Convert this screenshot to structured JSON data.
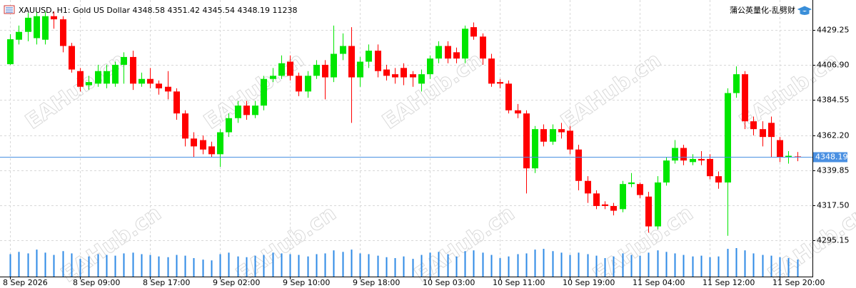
{
  "header": {
    "symbol": "XAUUSD, H1:",
    "description": "Gold US Dollar",
    "brand": "蒲公英量化-乱劈财"
  },
  "watermark": "EAHub.cn",
  "chart_data": {
    "type": "candlestick",
    "categories": [
      "8 Sep 2026",
      null,
      null,
      null,
      null,
      null,
      null,
      null,
      "8 Sep 09:00",
      null,
      null,
      null,
      null,
      null,
      null,
      null,
      "8 Sep 17:00",
      null,
      null,
      null,
      null,
      null,
      null,
      null,
      "9 Sep 02:00",
      null,
      null,
      null,
      null,
      null,
      null,
      null,
      "9 Sep 10:00",
      null,
      null,
      null,
      null,
      null,
      null,
      null,
      "9 Sep 18:00",
      null,
      null,
      null,
      null,
      null,
      null,
      null,
      "10 Sep 03:00",
      null,
      null,
      null,
      null,
      null,
      null,
      null,
      "10 Sep 11:00",
      null,
      null,
      null,
      null,
      null,
      null,
      null,
      "10 Sep 19:00",
      null,
      null,
      null,
      null,
      null,
      null,
      null,
      "11 Sep 04:00",
      null,
      null,
      null,
      null,
      null,
      null,
      null,
      "11 Sep 12:00",
      null,
      null,
      null,
      null,
      null,
      null,
      null,
      "11 Sep 20:00",
      null,
      null
    ],
    "open": [
      4407.4,
      4423,
      4428,
      4424,
      4423,
      4438,
      4436,
      4419,
      4403,
      4394,
      4395,
      4395,
      4395,
      4407,
      4412,
      4395,
      4398,
      4395,
      4393,
      4390,
      4376,
      4360,
      4359,
      4355,
      4350,
      4364,
      4373,
      4381,
      4375,
      4381,
      4398,
      4400,
      4409,
      4400,
      4390,
      4400,
      4407,
      4399,
      4414,
      4419,
      4399,
      4409,
      4416,
      4404,
      4401,
      4405,
      4401,
      4395,
      4401,
      4411,
      4419,
      4415,
      4411,
      4431,
      4425,
      4411,
      4396,
      4395,
      4378,
      4376,
      4341,
      4366,
      4358,
      4366,
      4365,
      4353,
      4333,
      4325,
      4318,
      4317,
      4315,
      4331,
      4331,
      4323,
      4304,
      4332,
      4346,
      4354,
      4345,
      4347,
      4347,
      4336,
      4332,
      4389,
      4401,
      4371,
      4366,
      4370,
      4359,
      4348,
      4348.58
    ],
    "high": [
      4426.5,
      4432,
      4440,
      4441,
      4441,
      4441,
      4438,
      4421,
      4405,
      4400,
      4407,
      4407,
      4409,
      4415,
      4416,
      4402,
      4405,
      4397,
      4403,
      4392,
      4378,
      4364,
      4362,
      4358,
      4366,
      4376,
      4384,
      4384,
      4384,
      4400,
      4405,
      4413,
      4413,
      4402,
      4403,
      4410,
      4410,
      4432,
      4427,
      4431,
      4412,
      4420,
      4420,
      4407,
      4405,
      4408,
      4403,
      4404,
      4413,
      4422,
      4422,
      4418,
      4432,
      4434,
      4427,
      4414,
      4398,
      4397,
      4382,
      4378,
      4368,
      4369,
      4369,
      4370,
      4368,
      4356,
      4336,
      4327,
      4320,
      4319,
      4333,
      4338,
      4332,
      4326,
      4336,
      4348,
      4359,
      4356,
      4350,
      4352,
      4350,
      4339,
      4392,
      4406,
      4403,
      4374,
      4371,
      4374,
      4361,
      4352,
      4351.42
    ],
    "low": [
      4406.9,
      4420,
      4422,
      4420,
      4420,
      4430,
      4415,
      4402,
      4390,
      4391,
      4393,
      4392,
      4393,
      4395,
      4391,
      4393,
      4392,
      4388,
      4385,
      4372,
      4355,
      4348,
      4350,
      4348,
      4342,
      4361,
      4370,
      4372,
      4373,
      4378,
      4396,
      4398,
      4397,
      4387,
      4386,
      4398,
      4385,
      4396,
      4410,
      4370,
      4393,
      4405,
      4399,
      4397,
      4395,
      4394,
      4393,
      4390,
      4398,
      4408,
      4408,
      4408,
      4408,
      4423,
      4407,
      4393,
      4392,
      4376,
      4373,
      4325,
      4338,
      4355,
      4356,
      4360,
      4350,
      4327,
      4319,
      4315,
      4315,
      4311,
      4313,
      4329,
      4322,
      4300,
      4302,
      4330,
      4344,
      4343,
      4343,
      4343,
      4334,
      4328,
      4298,
      4386,
      4366,
      4362,
      4355,
      4348,
      4345,
      4344,
      4345.54
    ],
    "close": [
      4423.3,
      4428,
      4437,
      4438,
      4438,
      4436,
      4419,
      4404,
      4393,
      4396,
      4403,
      4403,
      4407,
      4412,
      4395,
      4398,
      4395,
      4392,
      4390,
      4376,
      4360,
      4355,
      4353,
      4350,
      4364,
      4373,
      4381,
      4375,
      4381,
      4398,
      4400,
      4408,
      4400,
      4390,
      4400,
      4407,
      4399,
      4414,
      4419,
      4399,
      4409,
      4416,
      4403,
      4400,
      4399,
      4399,
      4399,
      4401,
      4411,
      4419,
      4411,
      4411,
      4430,
      4425,
      4411,
      4395,
      4395,
      4378,
      4376,
      4341,
      4366,
      4358,
      4366,
      4364,
      4353,
      4333,
      4325,
      4317,
      4317,
      4314,
      4331,
      4332,
      4324,
      4304,
      4332,
      4346,
      4354,
      4346,
      4347,
      4346,
      4336,
      4332,
      4389,
      4401,
      4371,
      4366,
      4361,
      4361,
      4348,
      4349,
      4348.19
    ],
    "volume": [
      14800,
      16300,
      15300,
      17800,
      15800,
      14300,
      16800,
      15300,
      11700,
      13300,
      14800,
      14300,
      13800,
      15300,
      15800,
      14800,
      14300,
      13300,
      12800,
      14300,
      13800,
      12200,
      11200,
      10700,
      14800,
      15800,
      13300,
      12800,
      13800,
      14300,
      15800,
      15300,
      14800,
      14300,
      13300,
      14800,
      15300,
      17300,
      16300,
      17800,
      15300,
      14800,
      13800,
      12800,
      12200,
      13300,
      11700,
      14300,
      15800,
      16300,
      14800,
      13300,
      16800,
      17300,
      15800,
      14300,
      12200,
      13300,
      14800,
      15300,
      17800,
      18300,
      16800,
      15800,
      14300,
      15800,
      14800,
      13800,
      12200,
      13300,
      15300,
      14300,
      13800,
      15800,
      17300,
      16300,
      15300,
      14300,
      13300,
      13800,
      12800,
      13300,
      18300,
      18800,
      17300,
      15300,
      14300,
      13800,
      12800,
      12200,
      11238
    ],
    "up_color": "#00e600",
    "down_color": "#ff0000",
    "volume_color": "#2e8ae6",
    "price_line_color": "#4a90e2",
    "ylim": [
      4272,
      4446.5
    ],
    "yticks": [
      4429.25,
      {
        "value": 4406.9,
        "label": "4406.90"
      },
      4384.55,
      {
        "value": 4362.2,
        "label": "4362.20"
      },
      4339.85,
      {
        "value": 4317.5,
        "label": "4317.50"
      },
      4295.15
    ],
    "grid": true
  }
}
